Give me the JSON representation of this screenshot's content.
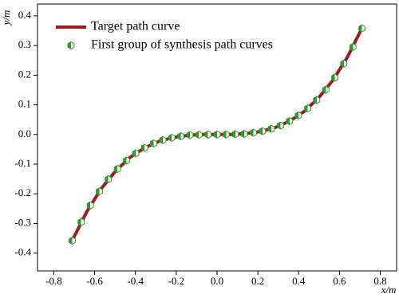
{
  "chart_data": {
    "type": "line",
    "x_label": "x/m",
    "y_label": "y/m",
    "xlim": [
      -0.88,
      0.88
    ],
    "ylim": [
      -0.46,
      0.44
    ],
    "xticks": [
      -0.8,
      -0.6,
      -0.4,
      -0.2,
      {
        "value": 0,
        "label": "0.0"
      },
      0.2,
      0.4,
      0.6,
      0.8
    ],
    "yticks": [
      -0.4,
      -0.3,
      -0.2,
      -0.1,
      {
        "value": 0,
        "label": "0.0"
      },
      0.1,
      0.2,
      0.3,
      0.4
    ],
    "legend": "upper left",
    "series": [
      {
        "name": "Target path curve",
        "color": "#a01c1c",
        "style": "line",
        "x": [
          -0.71,
          -0.639,
          -0.568,
          -0.497,
          -0.426,
          -0.355,
          -0.284,
          -0.213,
          -0.142,
          -0.071,
          0,
          0.071,
          0.142,
          0.213,
          0.284,
          0.355,
          0.426,
          0.497,
          0.568,
          0.639,
          0.71
        ],
        "values": [
          -0.358,
          -0.261,
          -0.183,
          -0.123,
          -0.077,
          -0.045,
          -0.023,
          -0.01,
          -0.003,
          0,
          0,
          0,
          0.003,
          0.01,
          0.023,
          0.045,
          0.077,
          0.123,
          0.183,
          0.261,
          0.358
        ]
      },
      {
        "name": "First group of synthesis path curves",
        "color": "#2e9a2e",
        "style": "marker",
        "x": [
          -0.71,
          -0.666,
          -0.621,
          -0.577,
          -0.533,
          -0.488,
          -0.444,
          -0.399,
          -0.355,
          -0.311,
          -0.266,
          -0.222,
          -0.178,
          -0.133,
          -0.089,
          -0.044,
          0,
          0.044,
          0.089,
          0.133,
          0.178,
          0.222,
          0.266,
          0.311,
          0.355,
          0.399,
          0.444,
          0.488,
          0.533,
          0.577,
          0.621,
          0.666,
          0.71
        ],
        "values": [
          -0.358,
          -0.295,
          -0.239,
          -0.192,
          -0.151,
          -0.116,
          -0.088,
          -0.064,
          -0.045,
          -0.03,
          -0.019,
          -0.011,
          -0.006,
          -0.002,
          -0.001,
          0,
          0,
          0,
          0.001,
          0.002,
          0.006,
          0.011,
          0.019,
          0.03,
          0.045,
          0.064,
          0.088,
          0.116,
          0.151,
          0.192,
          0.239,
          0.295,
          0.358
        ]
      }
    ]
  }
}
